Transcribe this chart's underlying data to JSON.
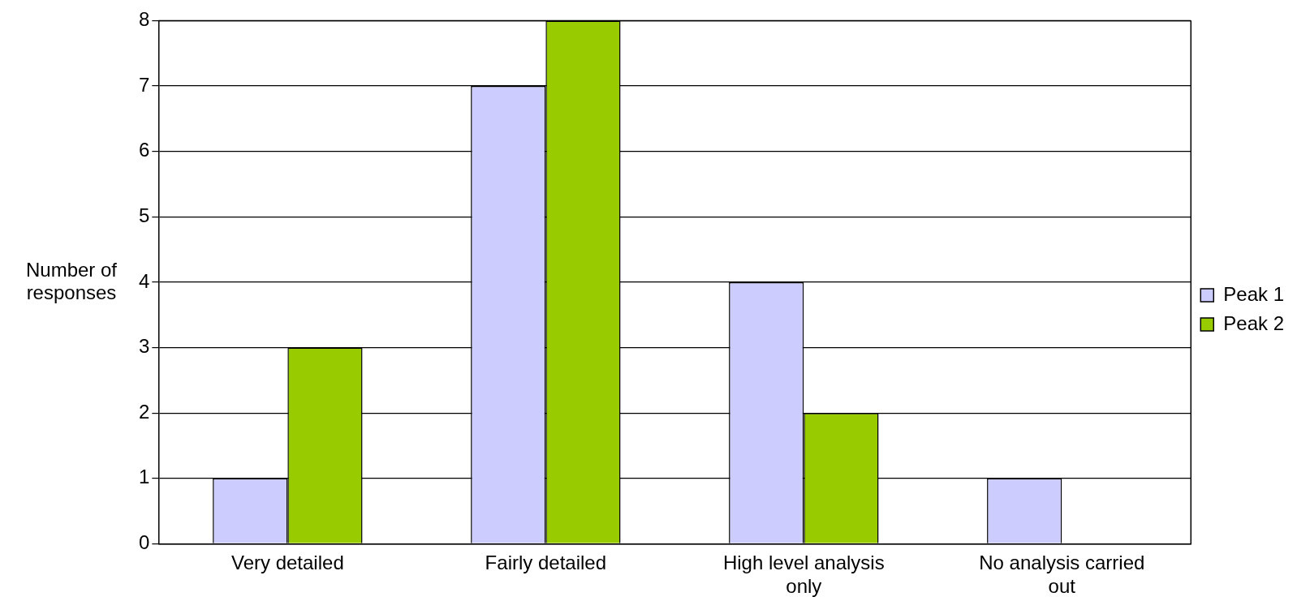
{
  "chart_data": {
    "type": "bar",
    "ylabel": "Number of responses",
    "categories": [
      "Very detailed",
      "Fairly detailed",
      "High level analysis only",
      "No analysis carried out"
    ],
    "series": [
      {
        "name": "Peak 1",
        "color": "#ccccff",
        "values": [
          1,
          7,
          4,
          1
        ]
      },
      {
        "name": "Peak 2",
        "color": "#99cc00",
        "values": [
          3,
          8,
          2,
          0
        ]
      }
    ],
    "ylim": [
      0,
      8
    ],
    "yticks": [
      0,
      1,
      2,
      3,
      4,
      5,
      6,
      7,
      8
    ],
    "grid": "y",
    "legend": "right"
  }
}
